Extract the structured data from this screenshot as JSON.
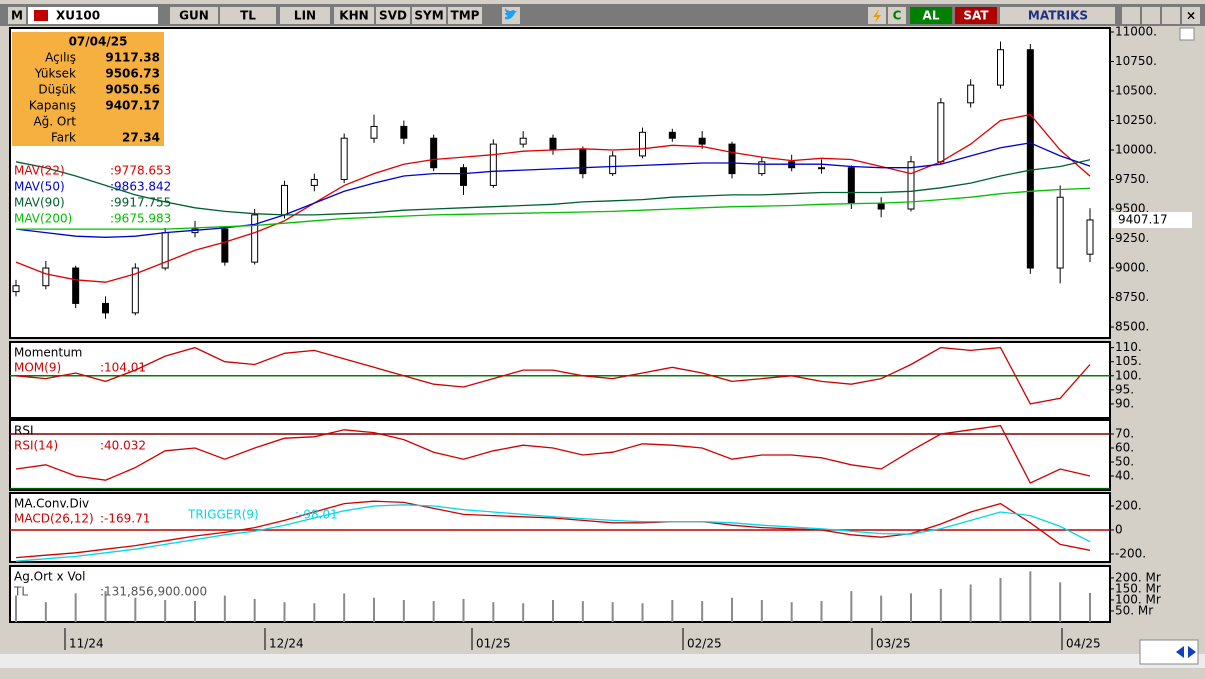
{
  "toolbar": {
    "menu": "M",
    "symbol": "XU100",
    "buttons": [
      "GUN",
      "TL",
      "LIN",
      "KHN",
      "SVD",
      "SYM",
      "TMP"
    ],
    "refresh": "C",
    "buy": "AL",
    "sell": "SAT",
    "brand": "MATRIKS"
  },
  "info_box": {
    "date": "07/04/25",
    "labels": [
      "Açılış",
      "Yüksek",
      "Düşük",
      "Kapanış",
      "Ağ. Ort",
      "Fark"
    ],
    "diff": "27.34"
  },
  "x_labels": [
    "11/24",
    "12/24",
    "01/25",
    "02/25",
    "03/25",
    "04/25"
  ],
  "chart_data": [
    {
      "type": "candlestick",
      "up_color": "#ffffff",
      "down_color": "#000000",
      "ohlc": [
        [
          8800,
          8900,
          8760,
          8850
        ],
        [
          8850,
          9060,
          8820,
          9000
        ],
        [
          9000,
          9020,
          8660,
          8700
        ],
        [
          8700,
          8760,
          8570,
          8620
        ],
        [
          8620,
          9040,
          8600,
          9000
        ],
        [
          9000,
          9340,
          8980,
          9300
        ],
        [
          9300,
          9400,
          9260,
          9330
        ],
        [
          9330,
          9350,
          9020,
          9050
        ],
        [
          9050,
          9500,
          9030,
          9450
        ],
        [
          9450,
          9740,
          9420,
          9700
        ],
        [
          9700,
          9800,
          9650,
          9750
        ],
        [
          9750,
          10140,
          9720,
          10100
        ],
        [
          10100,
          10300,
          10060,
          10200
        ],
        [
          10200,
          10250,
          10050,
          10100
        ],
        [
          10100,
          10130,
          9820,
          9850
        ],
        [
          9850,
          9880,
          9620,
          9700
        ],
        [
          9700,
          10090,
          9680,
          10050
        ],
        [
          10050,
          10160,
          10020,
          10100
        ],
        [
          10100,
          10130,
          9960,
          10000
        ],
        [
          10000,
          10030,
          9760,
          9800
        ],
        [
          9800,
          9990,
          9780,
          9950
        ],
        [
          9950,
          10190,
          9930,
          10150
        ],
        [
          10150,
          10180,
          10070,
          10100
        ],
        [
          10100,
          10160,
          10010,
          10050
        ],
        [
          10050,
          10070,
          9760,
          9800
        ],
        [
          9800,
          9940,
          9780,
          9900
        ],
        [
          9900,
          9960,
          9820,
          9850
        ],
        [
          9850,
          9920,
          9800,
          9850
        ],
        [
          9850,
          9870,
          9500,
          9550
        ],
        [
          9550,
          9600,
          9430,
          9500
        ],
        [
          9500,
          9950,
          9480,
          9900
        ],
        [
          9900,
          10440,
          9880,
          10400
        ],
        [
          10400,
          10600,
          10360,
          10550
        ],
        [
          10550,
          10920,
          10520,
          10850
        ],
        [
          10850,
          10900,
          8950,
          9000
        ],
        [
          9000,
          9700,
          8870,
          9600
        ],
        [
          9117.38,
          9506.73,
          9050.56,
          9407.17
        ]
      ],
      "series": [
        {
          "name": "MAV(22)",
          "color": "#e00000",
          "value_label": ":9778.653",
          "values": [
            9050,
            8950,
            8900,
            8880,
            8950,
            9050,
            9150,
            9220,
            9300,
            9400,
            9550,
            9700,
            9800,
            9880,
            9920,
            9940,
            9960,
            9990,
            10000,
            10010,
            10000,
            10010,
            10040,
            10030,
            9980,
            9940,
            9910,
            9930,
            9920,
            9860,
            9800,
            9900,
            10050,
            10250,
            10300,
            10000,
            9778.653
          ]
        },
        {
          "name": "MAV(50)",
          "color": "#0000d0",
          "value_label": ":9863.842",
          "values": [
            9330,
            9300,
            9270,
            9260,
            9270,
            9300,
            9320,
            9340,
            9370,
            9450,
            9550,
            9650,
            9720,
            9780,
            9800,
            9800,
            9820,
            9830,
            9840,
            9850,
            9860,
            9870,
            9880,
            9890,
            9890,
            9880,
            9880,
            9880,
            9860,
            9850,
            9850,
            9880,
            9950,
            10020,
            10060,
            9950,
            9863.842
          ]
        },
        {
          "name": "MAV(90)",
          "color": "#006030",
          "value_label": ":9917.755",
          "values": [
            9900,
            9850,
            9780,
            9700,
            9620,
            9560,
            9510,
            9480,
            9460,
            9450,
            9450,
            9460,
            9470,
            9490,
            9500,
            9510,
            9520,
            9530,
            9540,
            9560,
            9570,
            9580,
            9600,
            9610,
            9620,
            9620,
            9630,
            9640,
            9640,
            9640,
            9650,
            9680,
            9720,
            9780,
            9830,
            9860,
            9917.755
          ]
        },
        {
          "name": "MAV(200)",
          "color": "#00c000",
          "value_label": ":9675.983",
          "values": [
            9330,
            9330,
            9330,
            9330,
            9330,
            9330,
            9340,
            9350,
            9360,
            9380,
            9400,
            9420,
            9430,
            9440,
            9450,
            9455,
            9460,
            9465,
            9470,
            9475,
            9480,
            9490,
            9500,
            9510,
            9520,
            9525,
            9530,
            9540,
            9545,
            9550,
            9560,
            9580,
            9600,
            9630,
            9650,
            9665,
            9675.983
          ]
        }
      ],
      "ylim": [
        8407,
        11034
      ],
      "yticks": [
        {
          "value": 8500,
          "label": "8500."
        },
        {
          "value": 8750,
          "label": "8750."
        },
        {
          "value": 9000,
          "label": "9000."
        },
        {
          "value": 9250,
          "label": "9250."
        },
        {
          "value": 9500,
          "label": "9500."
        },
        {
          "value": 9750,
          "label": "9750."
        },
        {
          "value": 10000,
          "label": "10000."
        },
        {
          "value": 10250,
          "label": "10250."
        },
        {
          "value": 10500,
          "label": "10500."
        },
        {
          "value": 10750,
          "label": "10750."
        },
        {
          "value": 11000,
          "label": "11000."
        }
      ]
    },
    {
      "type": "line",
      "title": "Momentum",
      "ylim": [
        85,
        112
      ],
      "yticks": [
        {
          "value": 90,
          "label": "90."
        },
        {
          "value": 95,
          "label": "95."
        },
        {
          "value": 100,
          "label": "100."
        },
        {
          "value": 105,
          "label": "105."
        },
        {
          "value": 110,
          "label": "110."
        }
      ],
      "ref_lines": [
        {
          "value": 100,
          "color": "#008000"
        }
      ],
      "series": [
        {
          "name": "MOM(9)",
          "color": "#d00000",
          "value_label": ":104.01",
          "values": [
            100,
            99,
            101,
            98,
            102,
            107,
            110,
            105,
            104,
            108,
            109,
            106,
            103,
            100,
            97,
            96,
            99,
            102,
            102,
            100,
            99,
            101,
            103,
            101,
            98,
            99,
            100,
            98,
            97,
            99,
            104,
            110,
            109,
            110,
            90,
            92,
            104.01
          ]
        }
      ]
    },
    {
      "type": "line",
      "title": "RSI",
      "ylim": [
        30,
        80
      ],
      "yticks": [
        {
          "value": 40,
          "label": "40."
        },
        {
          "value": 50,
          "label": "50."
        },
        {
          "value": 60,
          "label": "60."
        },
        {
          "value": 70,
          "label": "70."
        }
      ],
      "ref_lines": [
        {
          "value": 70,
          "color": "#800000"
        },
        {
          "value": 31,
          "color": "#006000"
        }
      ],
      "series": [
        {
          "name": "RSI(14)",
          "color": "#d00000",
          "value_label": ":40.032",
          "values": [
            45,
            48,
            40,
            37,
            46,
            58,
            60,
            52,
            60,
            67,
            68,
            73,
            71,
            66,
            57,
            52,
            58,
            62,
            60,
            55,
            57,
            63,
            62,
            60,
            52,
            55,
            55,
            53,
            48,
            45,
            58,
            70,
            73,
            76,
            35,
            45,
            40.032
          ]
        }
      ]
    },
    {
      "type": "line",
      "title": "MA.Conv.Div",
      "ylim": [
        -267,
        308
      ],
      "yticks": [
        {
          "value": -200,
          "label": "-200."
        },
        0,
        {
          "value": 200,
          "label": "200."
        }
      ],
      "ref_lines": [
        {
          "value": 0,
          "color": "#c00000"
        }
      ],
      "series": [
        {
          "name": "MACD(26,12)",
          "color": "#d00000",
          "value_label": ":-169.71",
          "values": [
            -230,
            -210,
            -190,
            -160,
            -130,
            -90,
            -50,
            -20,
            20,
            80,
            150,
            220,
            240,
            230,
            180,
            130,
            120,
            110,
            100,
            80,
            60,
            60,
            70,
            70,
            40,
            20,
            10,
            0,
            -40,
            -60,
            -30,
            50,
            150,
            220,
            60,
            -120,
            -169.71
          ]
        },
        {
          "name": "TRIGGER(9)",
          "color": "#00d8e8",
          "value_label": ":-98.01",
          "values": [
            -260,
            -240,
            -220,
            -190,
            -160,
            -120,
            -80,
            -40,
            -10,
            40,
            100,
            160,
            200,
            210,
            200,
            170,
            150,
            130,
            110,
            95,
            80,
            70,
            70,
            70,
            60,
            40,
            25,
            10,
            -10,
            -30,
            -35,
            10,
            80,
            150,
            120,
            30,
            -98.01
          ]
        }
      ]
    },
    {
      "type": "bar",
      "title": "Ag.Ort x Vol",
      "ylim": [
        0,
        254
      ],
      "yticks": [
        {
          "value": 50,
          "label": "50. Mr"
        },
        {
          "value": 100,
          "label": "100. Mr"
        },
        {
          "value": 150,
          "label": "150. Mr"
        },
        {
          "value": 200,
          "label": "200. Mr"
        }
      ],
      "series": [
        {
          "name": "TL",
          "color": "#8a8a8a",
          "value_label": ":131,856,900.000",
          "values": [
            120,
            90,
            130,
            140,
            110,
            100,
            95,
            120,
            105,
            90,
            85,
            130,
            110,
            100,
            95,
            105,
            90,
            85,
            100,
            95,
            90,
            85,
            100,
            95,
            110,
            100,
            90,
            95,
            140,
            120,
            130,
            150,
            170,
            200,
            230,
            180,
            131.8569
          ]
        }
      ]
    }
  ]
}
